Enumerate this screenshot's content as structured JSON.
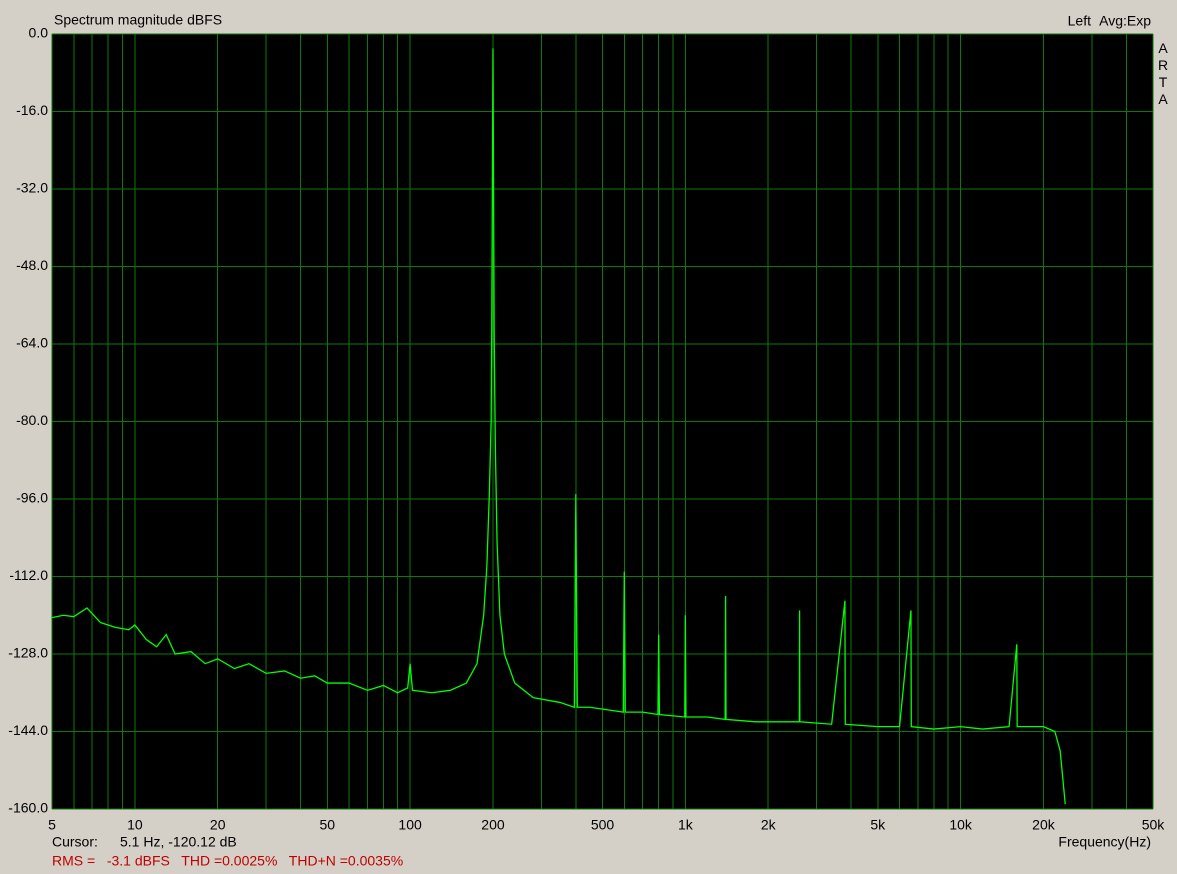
{
  "chart_data": {
    "type": "line",
    "title": "Spectrum magnitude dBFS",
    "channel": "Left",
    "averaging": "Avg:Exp",
    "brand": "ARTA",
    "x_label": "Frequency(Hz)",
    "cursor_label": "Cursor:",
    "cursor_value": "5.1 Hz, -120.12 dB",
    "measurements": "RMS =   -3.1 dBFS   THD =0.0025%   THD+N =0.0035%",
    "x_scale": "log",
    "grid": true,
    "background": "#000000",
    "grid_color": "#0a7a0a",
    "xlim": [
      5,
      50000
    ],
    "ylim": [
      -160,
      0
    ],
    "xticks": [
      5,
      10,
      20,
      50,
      100,
      200,
      500,
      {
        "value": 1000,
        "label": "1k"
      },
      {
        "value": 2000,
        "label": "2k"
      },
      {
        "value": 5000,
        "label": "5k"
      },
      {
        "value": 10000,
        "label": "10k"
      },
      {
        "value": 20000,
        "label": "20k"
      },
      {
        "value": 50000,
        "label": "50k"
      }
    ],
    "x_minor_ticks": [
      6,
      7,
      8,
      9,
      30,
      40,
      60,
      70,
      80,
      90,
      300,
      400,
      600,
      700,
      800,
      900,
      3000,
      4000,
      6000,
      7000,
      8000,
      9000,
      30000,
      40000
    ],
    "yticks": [
      {
        "value": 0,
        "label": "0.0"
      },
      {
        "value": -16,
        "label": "-16.0"
      },
      {
        "value": -32,
        "label": "-32.0"
      },
      {
        "value": -48,
        "label": "-48.0"
      },
      {
        "value": -64,
        "label": "-64.0"
      },
      {
        "value": -80,
        "label": "-80.0"
      },
      {
        "value": -96,
        "label": "-96.0"
      },
      {
        "value": -112,
        "label": "-112.0"
      },
      {
        "value": -128,
        "label": "-128.0"
      },
      {
        "value": -144,
        "label": "-144.0"
      },
      {
        "value": -160,
        "label": "-160.0"
      }
    ],
    "series": [
      {
        "color": "#00ff00",
        "x": [
          5,
          5.5,
          6,
          6.7,
          7.5,
          8.5,
          9.5,
          10,
          11,
          12,
          13,
          14,
          16,
          18,
          20,
          23,
          26,
          30,
          35,
          40,
          45,
          50,
          60,
          70,
          80,
          90,
          98,
          100,
          102,
          120,
          140,
          160,
          175,
          185,
          190,
          194,
          197,
          198,
          200,
          202,
          204,
          207,
          212,
          220,
          240,
          280,
          350,
          395,
          400,
          405,
          450,
          595,
          600,
          605,
          700,
          795,
          800,
          805,
          995,
          1000,
          1005,
          1200,
          1395,
          1400,
          1405,
          1800,
          2595,
          2600,
          2605,
          3400,
          3800,
          3810,
          5000,
          6000,
          6600,
          6620,
          8000,
          10000,
          12000,
          15000,
          16000,
          16050,
          20000,
          22000,
          23000,
          24000
        ],
        "values": [
          -120.5,
          -120,
          -120.3,
          -118.5,
          -121.5,
          -122.5,
          -123,
          -122,
          -125,
          -126.5,
          -124,
          -128,
          -127.5,
          -130,
          -129,
          -131,
          -130,
          -132,
          -131.5,
          -133,
          -132.5,
          -134,
          -134,
          -135.5,
          -134.5,
          -136,
          -135,
          -130,
          -135.5,
          -136,
          -135.5,
          -134,
          -130,
          -120,
          -110,
          -95,
          -80,
          -60,
          -3,
          -62,
          -85,
          -105,
          -120,
          -128,
          -134,
          -137,
          -138,
          -139,
          -95,
          -139,
          -139,
          -140,
          -111,
          -140,
          -140,
          -140.5,
          -124,
          -140.5,
          -141,
          -120,
          -141,
          -141,
          -141.5,
          -116,
          -141.5,
          -142,
          -142,
          -119,
          -142,
          -142.5,
          -117,
          -142.5,
          -143,
          -143,
          -119,
          -143,
          -143.5,
          -143,
          -143.5,
          -143,
          -126,
          -143,
          -143,
          -144,
          -148,
          -159
        ]
      }
    ]
  }
}
